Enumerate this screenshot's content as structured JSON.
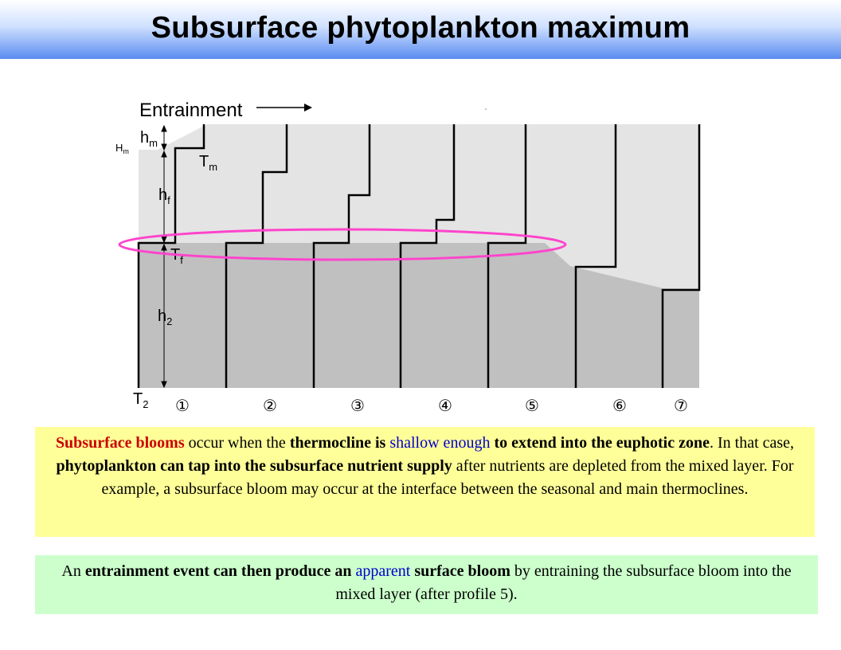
{
  "title": "Subsurface phytoplankton maximum",
  "figure": {
    "entrainment_label": "Entrainment",
    "depth_labels": {
      "Hm": "H",
      "Hm_sub": "m",
      "hm": "h",
      "hm_sub": "m",
      "Tm": "T",
      "Tm_sub": "m",
      "hf": "h",
      "hf_sub": "f",
      "Tf": "T",
      "Tf_sub": "f",
      "h2": "h",
      "h2_sub": "2",
      "T2": "T",
      "T2_sub": "2"
    },
    "profile_numbers": [
      "①",
      "②",
      "③",
      "④",
      "⑤",
      "⑥",
      "⑦"
    ],
    "colors": {
      "light_layer": "#e4e4e4",
      "dark_layer": "#c0c0c0",
      "ellipse": "#ff44cc"
    }
  },
  "paragraph1": {
    "p1": "Subsurface blooms",
    "p2": " occur when the ",
    "p3": "thermocline is ",
    "p4": "shallow enough",
    "p5": " to extend into the euphotic zone",
    "p6": ".  In that case, ",
    "p7": "phytoplankton can tap into the subsurface nutrient supply",
    "p8": " after nutrients are depleted from the mixed layer.  For example, a subsurface bloom may occur at the interface between the seasonal and main thermoclines."
  },
  "paragraph2": {
    "p1": "An ",
    "p2": "entrainment event can then produce an ",
    "p3": "apparent",
    "p4": " surface bloom",
    "p5": " by entraining the subsurface bloom into the mixed layer (after profile 5)."
  }
}
